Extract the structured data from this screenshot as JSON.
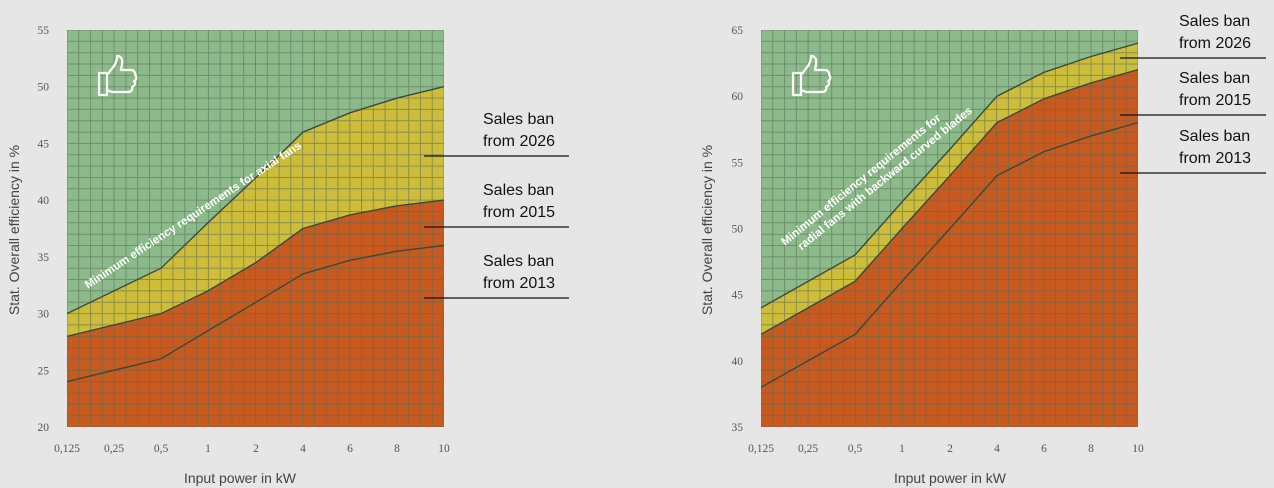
{
  "colors": {
    "green": "#8dba8a",
    "yellow": "#cdbd3a",
    "orange": "#c85a20",
    "grid_green": "#6f9f70",
    "grid_yellow": "#b3a531",
    "grid_orange": "#a84a18",
    "boundary": "#3a4a3a"
  },
  "chart_data": [
    {
      "type": "area",
      "icon": "thumbs-up-icon",
      "title": "",
      "xlabel": "Input power in kW",
      "ylabel": "Stat. Overall efficiency in %",
      "x_ticks": [
        "0,125",
        "0,25",
        "0,5",
        "1",
        "2",
        "4",
        "6",
        "8",
        "10"
      ],
      "y_ticks": [
        "20",
        "25",
        "30",
        "35",
        "40",
        "45",
        "50",
        "55"
      ],
      "ylim": [
        20,
        55
      ],
      "diagonal_label": "Minimum efficiency requirements for axial fans",
      "series": [
        {
          "name": "Sales ban from 2026",
          "values": [
            30,
            34,
            38,
            42,
            46,
            47.7,
            49,
            50
          ]
        },
        {
          "name": "Sales ban from 2015",
          "values": [
            28,
            30,
            32,
            34.5,
            37.5,
            38.7,
            39.5,
            40
          ]
        },
        {
          "name": "Sales ban from 2013",
          "values": [
            24,
            26,
            28.5,
            31,
            33.5,
            34.7,
            35.5,
            36
          ]
        }
      ],
      "callouts": [
        {
          "line1": "Sales ban",
          "line2": "from 2026"
        },
        {
          "line1": "Sales ban",
          "line2": "from 2015"
        },
        {
          "line1": "Sales ban",
          "line2": "from 2013"
        }
      ]
    },
    {
      "type": "area",
      "icon": "thumbs-up-icon",
      "title": "",
      "xlabel": "Input power in kW",
      "ylabel": "Stat. Overall efficiency in %",
      "x_ticks": [
        "0,125",
        "0,25",
        "0,5",
        "1",
        "2",
        "4",
        "6",
        "8",
        "10"
      ],
      "y_ticks": [
        "35",
        "40",
        "45",
        "50",
        "55",
        "60",
        "65"
      ],
      "ylim": [
        35,
        65
      ],
      "diagonal_label_line1": "Minimum efficiency requirements for",
      "diagonal_label_line2": "radial fans with backward curved blades",
      "series": [
        {
          "name": "Sales ban from 2026",
          "values": [
            44,
            48,
            52,
            56,
            60,
            61.8,
            63,
            64
          ]
        },
        {
          "name": "Sales ban from 2015",
          "values": [
            42,
            46,
            50,
            54,
            58,
            59.8,
            61,
            62
          ]
        },
        {
          "name": "Sales ban from 2013",
          "values": [
            38,
            42,
            46,
            50,
            54,
            55.8,
            57,
            58
          ]
        }
      ],
      "callouts": [
        {
          "line1": "Sales ban",
          "line2": "from 2026"
        },
        {
          "line1": "Sales ban",
          "line2": "from 2015"
        },
        {
          "line1": "Sales ban",
          "line2": "from 2013"
        }
      ]
    }
  ]
}
